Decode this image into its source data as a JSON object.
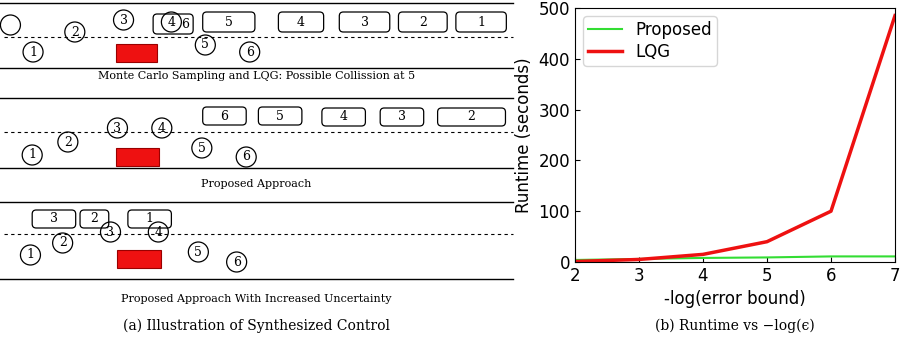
{
  "diagram": {
    "caption": "(a) Illustration of Synthesized Control",
    "panels": [
      {
        "caption": "Monte Carlo Sampling and LQG: Possible Collission at 5",
        "vehicles": [
          "1",
          "2",
          "3",
          "4",
          "5",
          "6"
        ],
        "obstacles": [
          "6",
          "5",
          "4",
          "3",
          "2",
          "1"
        ]
      },
      {
        "caption": "Proposed Approach",
        "vehicles": [
          "1",
          "2",
          "3",
          "4",
          "5",
          "6"
        ],
        "obstacles": [
          "6",
          "5",
          "4",
          "3",
          "2"
        ]
      },
      {
        "caption": "Proposed Approach With Increased Uncertainty",
        "vehicles": [
          "1",
          "2",
          "3",
          "4",
          "5",
          "6"
        ],
        "obstacles": [
          "3",
          "2",
          "1"
        ]
      }
    ]
  },
  "chart_data": {
    "type": "line",
    "title": "(b) Runtime vs −log(ϵ)",
    "x_label": "-log(error bound)",
    "y_label": "Runtime (seconds)",
    "x": [
      2,
      3,
      4,
      5,
      6,
      7
    ],
    "series": [
      {
        "name": "Proposed",
        "color": "#33dd33",
        "line_style": "solid",
        "values": [
          4,
          6,
          8,
          9,
          11,
          11
        ]
      },
      {
        "name": "LQG",
        "color": "#ee1111",
        "line_style": "solid",
        "values": [
          1,
          5,
          15,
          40,
          100,
          485
        ]
      }
    ],
    "xlim": [
      2,
      7
    ],
    "ylim": [
      0,
      500
    ],
    "xticks": [
      2,
      3,
      4,
      5,
      6,
      7
    ],
    "yticks": [
      0,
      100,
      200,
      300,
      400,
      500
    ],
    "legend": "upper left",
    "grid": false
  }
}
